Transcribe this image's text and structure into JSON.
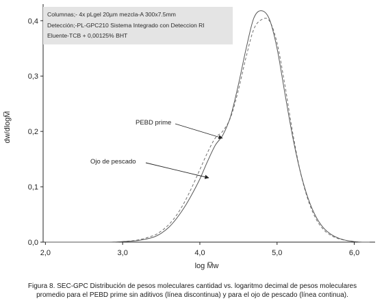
{
  "chart_data": {
    "type": "line",
    "xlabel": "log M̅w",
    "ylabel": "dw/dlogM̅",
    "xlim": [
      1.97,
      6.27
    ],
    "ylim": [
      0,
      0.43
    ],
    "x_ticks": [
      2.0,
      3.0,
      4.0,
      5.0,
      6.0
    ],
    "x_tick_labels": [
      "2,0",
      "3,0",
      "4,0",
      "5,0",
      "6,0"
    ],
    "y_ticks": [
      0,
      0.1,
      0.2,
      0.3,
      0.4
    ],
    "y_tick_labels": [
      "0,0",
      "0,1",
      "0,2",
      "0,3",
      "0,4"
    ],
    "grid": false,
    "info_box": [
      "Columnas;- 4x pLgel 20µm mezcla-A 300x7.5mm",
      "Detección;-PL-GPC210 Sistema Integrado con Deteccion RI",
      "Eluente-TCB + 0,00125% BHT"
    ],
    "series": [
      {
        "style": "dashed",
        "color": "#6e6e6e",
        "x": [
          2.0,
          2.8,
          3.0,
          3.2,
          3.4,
          3.5,
          3.6,
          3.7,
          3.8,
          3.9,
          4.0,
          4.1,
          4.2,
          4.3,
          4.4,
          4.5,
          4.6,
          4.7,
          4.8,
          4.9,
          5.0,
          5.1,
          5.2,
          5.3,
          5.4,
          5.5,
          5.6,
          5.7,
          5.8,
          5.9,
          6.0,
          6.1,
          6.2
        ],
        "values": [
          0.0,
          0.0,
          0.001,
          0.004,
          0.012,
          0.02,
          0.032,
          0.049,
          0.072,
          0.1,
          0.131,
          0.162,
          0.188,
          0.201,
          0.226,
          0.275,
          0.335,
          0.385,
          0.402,
          0.4,
          0.36,
          0.285,
          0.2,
          0.128,
          0.077,
          0.043,
          0.023,
          0.012,
          0.006,
          0.003,
          0.001,
          0.0,
          0.0
        ]
      },
      {
        "style": "solid",
        "color": "#555555",
        "x": [
          2.0,
          2.8,
          3.0,
          3.2,
          3.4,
          3.5,
          3.6,
          3.7,
          3.8,
          3.9,
          4.0,
          4.1,
          4.2,
          4.3,
          4.4,
          4.5,
          4.6,
          4.7,
          4.8,
          4.9,
          5.0,
          5.1,
          5.2,
          5.3,
          5.4,
          5.5,
          5.6,
          5.7,
          5.8,
          5.9,
          6.0,
          6.1,
          6.2
        ],
        "values": [
          0.0,
          0.0,
          0.001,
          0.003,
          0.009,
          0.016,
          0.027,
          0.043,
          0.063,
          0.087,
          0.114,
          0.146,
          0.175,
          0.194,
          0.228,
          0.285,
          0.35,
          0.405,
          0.418,
          0.403,
          0.35,
          0.27,
          0.192,
          0.128,
          0.08,
          0.047,
          0.026,
          0.014,
          0.007,
          0.003,
          0.001,
          0.0,
          0.0
        ]
      }
    ],
    "annotations": [
      {
        "text": "PEBD prime"
      },
      {
        "text": "Ojo de pescado"
      }
    ]
  },
  "caption": {
    "line1": "Figura 8. SEC-GPC Distribución de pesos moleculares cantidad vs. logaritmo decimal de pesos moleculares",
    "line2": "promedio para el PEBD prime sin aditivos (línea discontinua) y para el ojo de pescado (línea continua)."
  }
}
